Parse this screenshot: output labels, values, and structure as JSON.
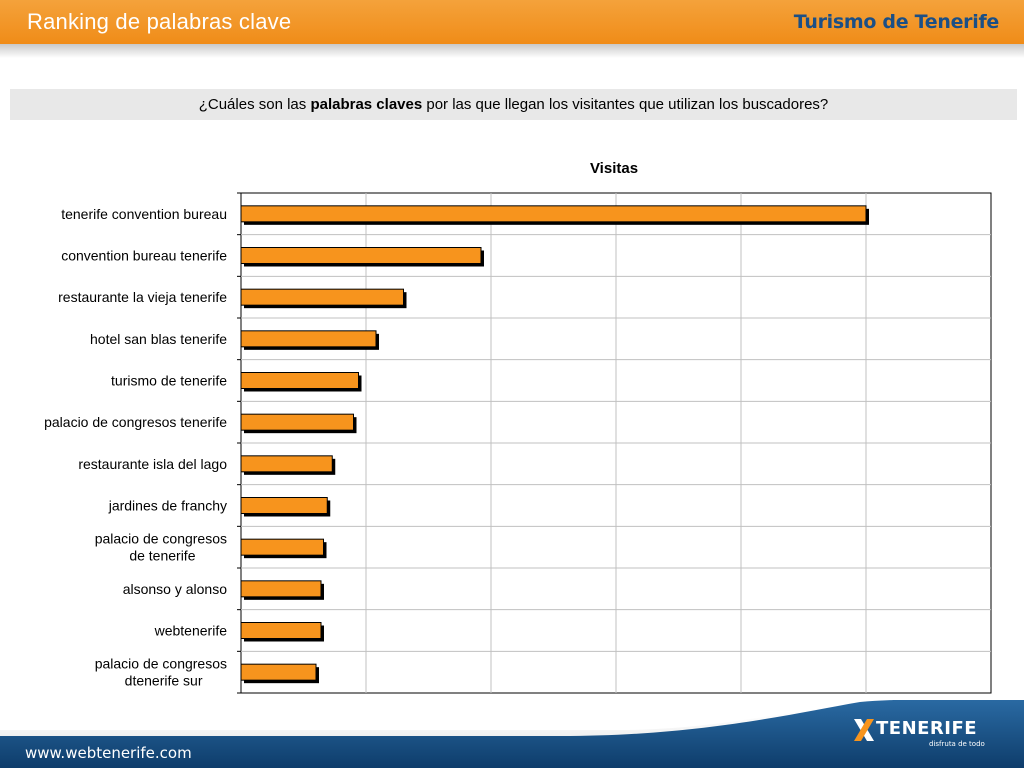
{
  "header": {
    "title": "Ranking de palabras clave",
    "brand": "Turismo de Tenerife"
  },
  "question": {
    "prefix": "¿Cuáles son las ",
    "bold": "palabras claves",
    "suffix": " por las que llegan los visitantes que utilizan los buscadores?"
  },
  "chart_data": {
    "type": "bar",
    "orientation": "horizontal",
    "title": "Visitas",
    "xlabel": "",
    "ylabel": "",
    "categories": [
      "tenerife convention bureau",
      "convention bureau tenerife",
      "restaurante la vieja tenerife",
      "hotel san blas tenerife",
      "turismo de tenerife",
      "palacio de congresos tenerife",
      "restaurante isla del lago",
      "jardines de franchy",
      "palacio de congresos de tenerife",
      "alsonso y alonso",
      "webtenerife",
      "palacio de congresos dtenerife sur"
    ],
    "values": [
      5.0,
      1.92,
      1.3,
      1.08,
      0.94,
      0.9,
      0.73,
      0.69,
      0.66,
      0.64,
      0.64,
      0.6
    ],
    "xlim": [
      0,
      6
    ],
    "grid": true,
    "legend": "none",
    "bar_color": "#f7941d"
  },
  "footer": {
    "url": "www.webtenerife.com",
    "logo_text": "TENERIFE",
    "logo_tagline": "disfruta de todo"
  },
  "colors": {
    "accent": "#f08c18",
    "brand_blue": "#1b4f86",
    "footer_blue": "#134a7c"
  }
}
